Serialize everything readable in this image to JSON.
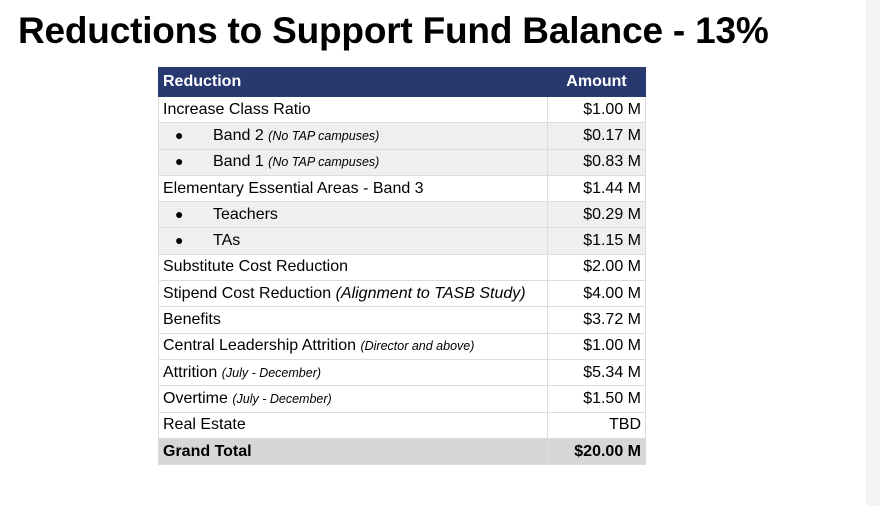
{
  "title": "Reductions to Support Fund Balance - 13%",
  "table": {
    "headers": {
      "reduction": "Reduction",
      "amount": "Amount"
    },
    "rows": [
      {
        "label": "Increase Class Ratio",
        "note": "",
        "amount": "$1.00 M",
        "sub": false
      },
      {
        "label": "Band 2",
        "note": "(No TAP campuses)",
        "amount": "$0.17 M",
        "sub": true
      },
      {
        "label": "Band 1",
        "note": "(No TAP campuses)",
        "amount": "$0.83 M",
        "sub": true
      },
      {
        "label": "Elementary Essential Areas - Band 3",
        "note": "",
        "amount": "$1.44 M",
        "sub": false
      },
      {
        "label": "Teachers",
        "note": "",
        "amount": "$0.29 M",
        "sub": true
      },
      {
        "label": "TAs",
        "note": "",
        "amount": "$1.15 M",
        "sub": true
      },
      {
        "label": "Substitute Cost Reduction",
        "note": "",
        "amount": "$2.00 M",
        "sub": false
      },
      {
        "label": "Stipend Cost Reduction",
        "note": "(Alignment to TASB Study)",
        "amount": "$4.00 M",
        "sub": false
      },
      {
        "label": "Benefits",
        "note": "",
        "amount": "$3.72 M",
        "sub": false
      },
      {
        "label": "Central Leadership Attrition",
        "note": "(Director and above)",
        "amount": "$1.00 M",
        "sub": false
      },
      {
        "label": "Attrition",
        "note": "(July - December)",
        "amount": "$5.34 M",
        "sub": false
      },
      {
        "label": "Overtime",
        "note": "(July - December)",
        "amount": "$1.50 M",
        "sub": false
      },
      {
        "label": "Real Estate",
        "note": "",
        "amount": "TBD",
        "sub": false
      }
    ],
    "total": {
      "label": "Grand Total",
      "amount": "$20.00 M"
    }
  },
  "colors": {
    "header_bg": "#283970",
    "header_text": "#ffffff",
    "alt_row_bg": "#efefef",
    "total_row_bg": "#d6d6d6"
  },
  "icons": {
    "bullet": "●"
  }
}
